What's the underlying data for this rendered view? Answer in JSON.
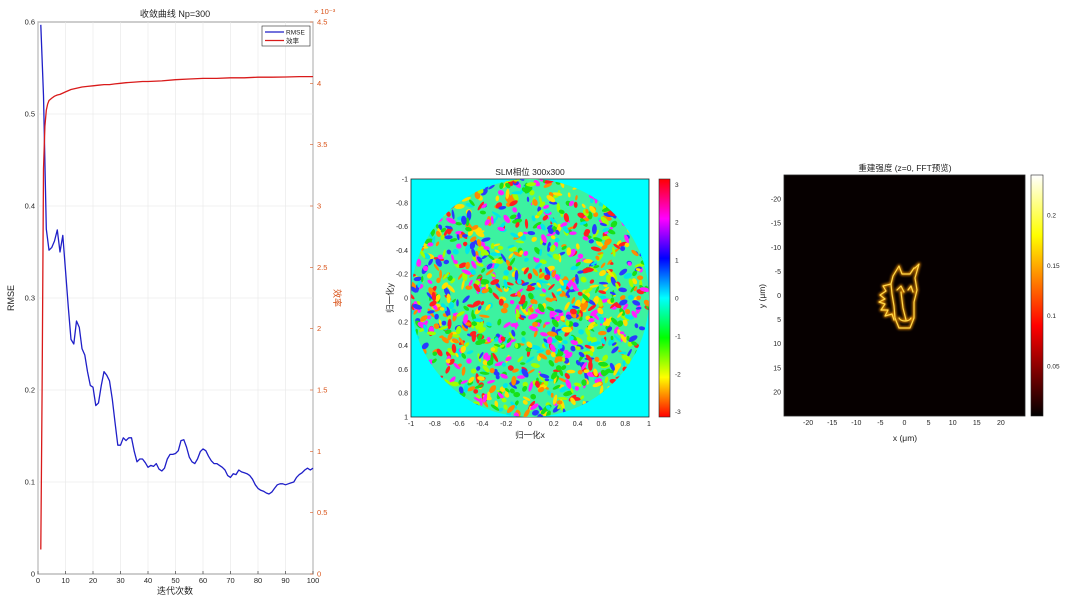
{
  "chart_data": [
    {
      "type": "line",
      "title": "收敛曲线 Np=300",
      "xlabel": "迭代次数",
      "ylabel": "RMSE",
      "ylabel_right": "效率",
      "right_axis_exponent": "× 10⁻³",
      "xlim": [
        0,
        100
      ],
      "ylim": [
        0,
        0.6
      ],
      "ylim_right": [
        0,
        4.5
      ],
      "x_ticks": [
        0,
        10,
        20,
        30,
        40,
        50,
        60,
        70,
        80,
        90,
        100
      ],
      "y_ticks": [
        0,
        0.1,
        0.2,
        0.3,
        0.4,
        0.5,
        0.6
      ],
      "y_ticks_right": [
        0,
        0.5,
        1,
        1.5,
        2,
        2.5,
        3,
        3.5,
        4,
        4.5
      ],
      "grid": true,
      "legend_position": "top-right",
      "series": [
        {
          "name": "RMSE",
          "axis": "left",
          "color": "#1f1fc8",
          "x": [
            1,
            2,
            3,
            4,
            5,
            6,
            7,
            8,
            9,
            10,
            11,
            12,
            13,
            14,
            15,
            16,
            17,
            18,
            19,
            20,
            21,
            22,
            23,
            24,
            25,
            26,
            27,
            28,
            29,
            30,
            31,
            32,
            33,
            34,
            35,
            36,
            37,
            38,
            39,
            40,
            41,
            42,
            43,
            44,
            45,
            46,
            47,
            48,
            49,
            50,
            51,
            52,
            53,
            54,
            55,
            56,
            57,
            58,
            59,
            60,
            61,
            62,
            63,
            64,
            65,
            66,
            67,
            68,
            69,
            70,
            71,
            72,
            73,
            74,
            75,
            76,
            77,
            78,
            79,
            80,
            81,
            82,
            83,
            84,
            85,
            86,
            87,
            88,
            89,
            90,
            91,
            92,
            93,
            94,
            95,
            96,
            97,
            98,
            99,
            100
          ],
          "y": [
            0.597,
            0.52,
            0.375,
            0.352,
            0.355,
            0.362,
            0.374,
            0.35,
            0.368,
            0.33,
            0.29,
            0.255,
            0.25,
            0.275,
            0.268,
            0.245,
            0.238,
            0.22,
            0.205,
            0.203,
            0.183,
            0.186,
            0.205,
            0.22,
            0.216,
            0.21,
            0.19,
            0.165,
            0.14,
            0.14,
            0.148,
            0.145,
            0.148,
            0.148,
            0.133,
            0.122,
            0.125,
            0.125,
            0.121,
            0.116,
            0.118,
            0.117,
            0.12,
            0.114,
            0.112,
            0.115,
            0.125,
            0.13,
            0.13,
            0.131,
            0.134,
            0.145,
            0.146,
            0.138,
            0.127,
            0.122,
            0.12,
            0.125,
            0.133,
            0.136,
            0.134,
            0.128,
            0.123,
            0.12,
            0.12,
            0.118,
            0.116,
            0.113,
            0.107,
            0.105,
            0.109,
            0.108,
            0.113,
            0.111,
            0.11,
            0.109,
            0.107,
            0.103,
            0.097,
            0.093,
            0.091,
            0.09,
            0.088,
            0.087,
            0.089,
            0.093,
            0.097,
            0.098,
            0.098,
            0.097,
            0.098,
            0.099,
            0.1,
            0.105,
            0.108,
            0.11,
            0.113,
            0.115,
            0.113,
            0.115
          ]
        },
        {
          "name": "效率",
          "axis": "right",
          "color": "#d91a1a",
          "x": [
            1,
            1.5,
            2,
            2.5,
            3,
            3.5,
            4,
            5,
            6,
            7,
            8,
            9,
            10,
            12,
            14,
            16,
            18,
            20,
            22,
            24,
            26,
            28,
            30,
            32,
            35,
            38,
            40,
            45,
            50,
            55,
            60,
            65,
            70,
            75,
            80,
            85,
            90,
            95,
            100
          ],
          "y": [
            0.2,
            1.5,
            3.3,
            3.65,
            3.78,
            3.83,
            3.86,
            3.88,
            3.895,
            3.905,
            3.91,
            3.92,
            3.93,
            3.95,
            3.96,
            3.97,
            3.975,
            3.98,
            3.985,
            3.99,
            3.99,
            3.995,
            4.0,
            4.005,
            4.01,
            4.015,
            4.015,
            4.02,
            4.03,
            4.035,
            4.04,
            4.04,
            4.045,
            4.045,
            4.05,
            4.05,
            4.052,
            4.055,
            4.055
          ]
        }
      ]
    },
    {
      "type": "heatmap",
      "title": "SLM相位 300x300",
      "xlabel": "归一化x",
      "ylabel": "归一化y",
      "xlim": [
        -1,
        1
      ],
      "ylim": [
        1,
        -1
      ],
      "x_ticks": [
        -1,
        -0.8,
        -0.6,
        -0.4,
        -0.2,
        0,
        0.2,
        0.4,
        0.6,
        0.8,
        1
      ],
      "y_ticks": [
        -1,
        -0.8,
        -0.6,
        -0.4,
        -0.2,
        0,
        0.2,
        0.4,
        0.6,
        0.8,
        1
      ],
      "colormap": "hsv",
      "colorbar_range": [
        -3.14,
        3.14
      ],
      "colorbar_ticks": [
        -3,
        -2,
        -1,
        0,
        1,
        2,
        3
      ],
      "aperture": "circular, radius 1",
      "outside_value": 0,
      "content": "random speckle phase pattern"
    },
    {
      "type": "heatmap",
      "title": "重建强度 (z=0, FFT预览)",
      "xlabel": "x (μm)",
      "ylabel": "y (μm)",
      "xlim": [
        -25,
        25
      ],
      "ylim": [
        25,
        -25
      ],
      "x_ticks": [
        -20,
        -15,
        -10,
        -5,
        0,
        5,
        10,
        15,
        20
      ],
      "y_ticks": [
        -20,
        -15,
        -10,
        -5,
        0,
        5,
        10,
        15,
        20
      ],
      "colormap": "hot",
      "colorbar_range": [
        0,
        0.24
      ],
      "colorbar_ticks": [
        0.05,
        0.1,
        0.15,
        0.2
      ],
      "content": "horse head outline centered near (0,0)"
    }
  ]
}
